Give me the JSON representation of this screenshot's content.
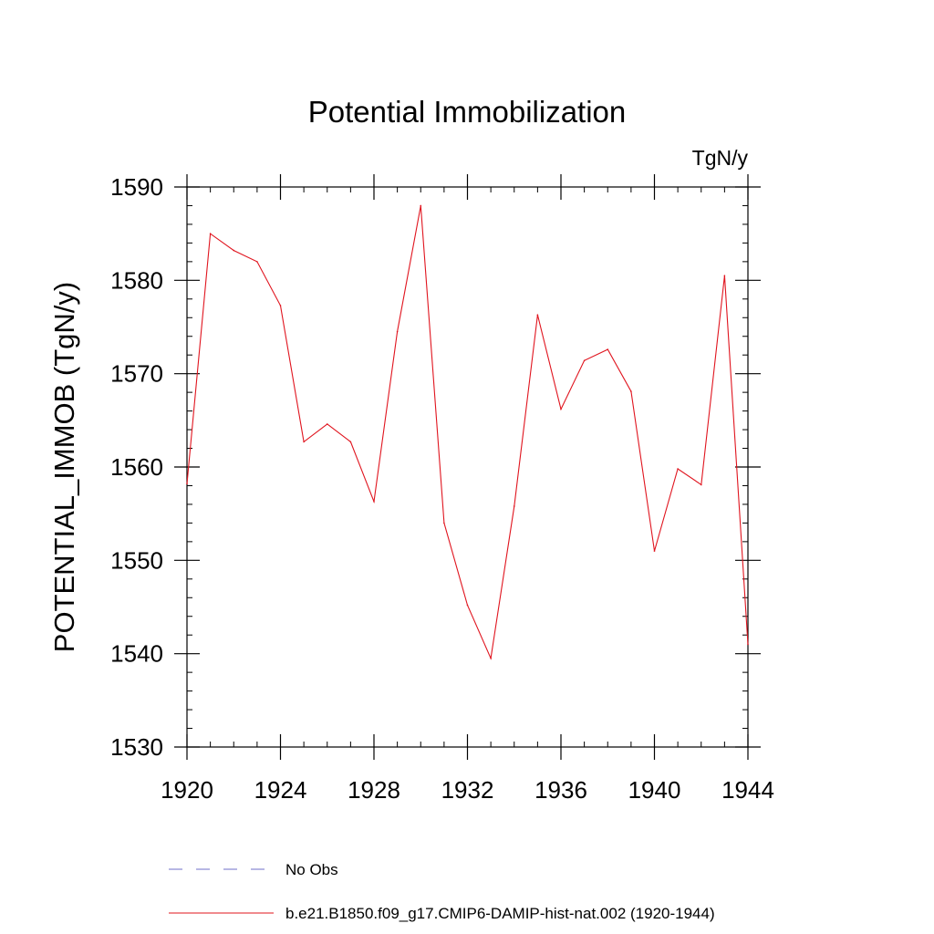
{
  "chart_data": {
    "type": "line",
    "title": "Potential Immobilization",
    "units": "TgN/y",
    "ylabel": "POTENTIAL_IMMOB  (TgN/y)",
    "xlabel": "",
    "xlim": [
      1920,
      1944
    ],
    "ylim": [
      1530,
      1590
    ],
    "xticks": [
      1920,
      1924,
      1928,
      1932,
      1936,
      1940,
      1944
    ],
    "yticks": [
      1530,
      1540,
      1550,
      1560,
      1570,
      1580,
      1590
    ],
    "x": [
      1920,
      1921,
      1922,
      1923,
      1924,
      1925,
      1926,
      1927,
      1928,
      1929,
      1930,
      1931,
      1932,
      1933,
      1934,
      1935,
      1936,
      1937,
      1938,
      1939,
      1940,
      1941,
      1942,
      1943,
      1944
    ],
    "series": [
      {
        "name": "b.e21.B1850.f09_g17.CMIP6-DAMIP-hist-nat.002 (1920-1944)",
        "color": "#e0141e",
        "values": [
          1558.2,
          1585.0,
          1583.2,
          1582.0,
          1577.3,
          1562.7,
          1564.6,
          1562.7,
          1556.3,
          1574.5,
          1588.0,
          1554.0,
          1545.2,
          1539.5,
          1555.8,
          1576.3,
          1566.2,
          1571.4,
          1572.6,
          1568.1,
          1551.0,
          1559.8,
          1558.1,
          1580.5,
          1541.0
        ]
      }
    ],
    "legend": [
      {
        "label": "No Obs",
        "style": "dashed",
        "color": "#6f6fc8"
      },
      {
        "label": "b.e21.B1850.f09_g17.CMIP6-DAMIP-hist-nat.002 (1920-1944)",
        "style": "solid",
        "color": "#e0141e"
      }
    ],
    "legend_position": "bottom",
    "grid": false
  }
}
